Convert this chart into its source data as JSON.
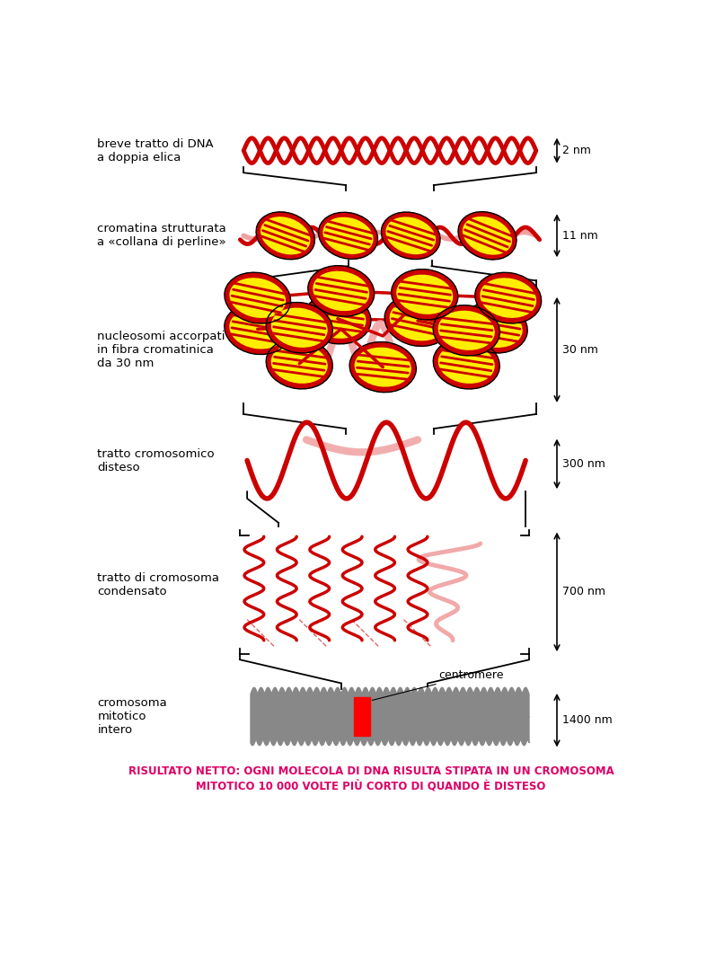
{
  "bg_color": "#ffffff",
  "red": "#cc0000",
  "dark_red": "#990000",
  "pink": "#f0a0a0",
  "light_pink": "#f5b8b8",
  "yellow": "#ffee00",
  "gray": "#888888",
  "black": "#000000",
  "magenta": "#dd0066",
  "footer": "RISULTATO NETTO: OGNI MOLECOLA DI DNA RISULTTA STIPATA IN UN CROMOSOMA\nMITOTICO 10 000 VOLTE PIU CORTO DI QUANDO E DISTESO",
  "footer_line1": "RISULTATO NETTO: OGNI MOLECOLA DI DNA RISULTA STIPATA IN UN CROMOSOMA",
  "footer_line2": "MITOTICO 10 000 VOLTE PIÙ CORTO DI QUANDO È DISTESO"
}
